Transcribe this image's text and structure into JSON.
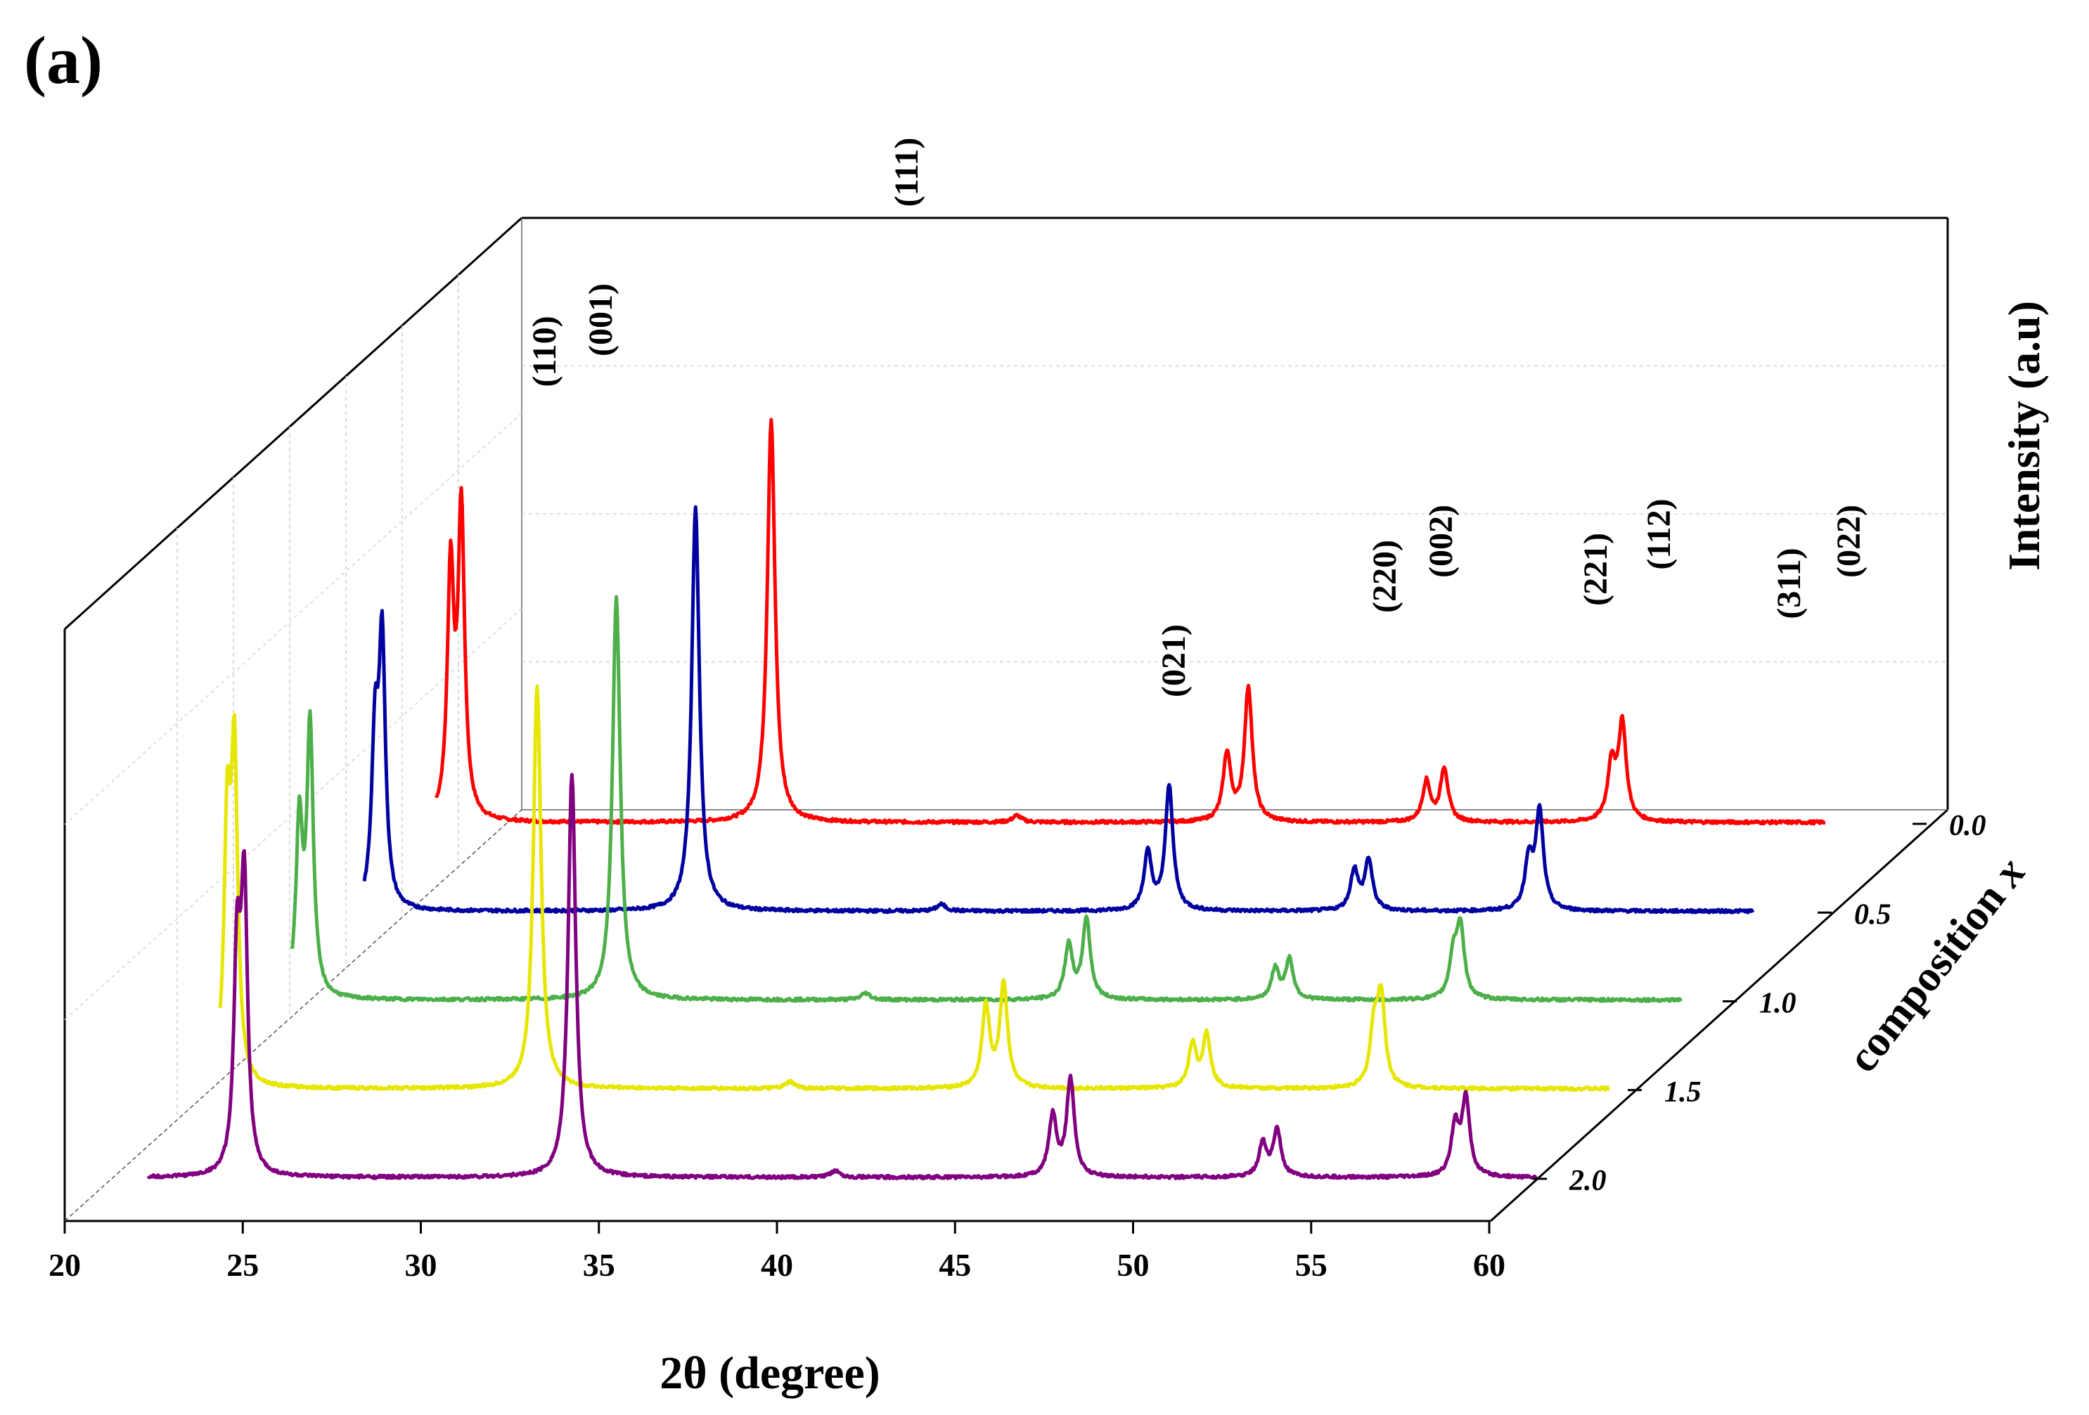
{
  "panel_label": "(a)",
  "chart_data": {
    "type": "line",
    "style": "3d-waterfall",
    "xlabel": "2θ (degree)",
    "ylabel": "Intensity (a.u)",
    "zlabel": "composition x",
    "xlim": [
      20,
      60
    ],
    "x_ticks": [
      "20",
      "25",
      "30",
      "35",
      "40",
      "45",
      "50",
      "55",
      "60"
    ],
    "x_tick_values": [
      20,
      25,
      30,
      35,
      40,
      45,
      50,
      55,
      60
    ],
    "z_ticks": [
      "0.0",
      "0.5",
      "1.0",
      "1.5",
      "2.0"
    ],
    "ylim": [
      0,
      100
    ],
    "grid": true,
    "series": [
      {
        "name": "0.0",
        "composition": 0.0,
        "color": "#ff0000",
        "peaks": [
          {
            "two_theta": 21.4,
            "intensity": 73,
            "width": 0.11
          },
          {
            "two_theta": 21.7,
            "intensity": 91,
            "width": 0.11
          },
          {
            "two_theta": 30.4,
            "intensity": 120,
            "width": 0.13
          },
          {
            "two_theta": 37.3,
            "intensity": 2,
            "width": 0.15
          },
          {
            "two_theta": 43.2,
            "intensity": 20,
            "width": 0.13
          },
          {
            "two_theta": 43.8,
            "intensity": 40,
            "width": 0.13
          },
          {
            "two_theta": 48.8,
            "intensity": 12,
            "width": 0.13
          },
          {
            "two_theta": 49.3,
            "intensity": 16,
            "width": 0.13
          },
          {
            "two_theta": 54.0,
            "intensity": 17,
            "width": 0.13
          },
          {
            "two_theta": 54.3,
            "intensity": 29,
            "width": 0.13
          }
        ]
      },
      {
        "name": "0.5",
        "composition": 0.5,
        "color": "#0000a0",
        "peaks": [
          {
            "two_theta": 21.3,
            "intensity": 48,
            "width": 0.11
          },
          {
            "two_theta": 21.5,
            "intensity": 78,
            "width": 0.11
          },
          {
            "two_theta": 30.3,
            "intensity": 120,
            "width": 0.13
          },
          {
            "two_theta": 37.2,
            "intensity": 2,
            "width": 0.15
          },
          {
            "two_theta": 43.0,
            "intensity": 17,
            "width": 0.13
          },
          {
            "two_theta": 43.6,
            "intensity": 37,
            "width": 0.13
          },
          {
            "two_theta": 48.8,
            "intensity": 12,
            "width": 0.13
          },
          {
            "two_theta": 49.2,
            "intensity": 15,
            "width": 0.13
          },
          {
            "two_theta": 53.7,
            "intensity": 15,
            "width": 0.13
          },
          {
            "two_theta": 54.0,
            "intensity": 29,
            "width": 0.13
          }
        ]
      },
      {
        "name": "1.0",
        "composition": 1.0,
        "color": "#4daf4a",
        "peaks": [
          {
            "two_theta": 21.2,
            "intensity": 51,
            "width": 0.11
          },
          {
            "two_theta": 21.5,
            "intensity": 80,
            "width": 0.11
          },
          {
            "two_theta": 30.1,
            "intensity": 120,
            "width": 0.13
          },
          {
            "two_theta": 37.1,
            "intensity": 2,
            "width": 0.15
          },
          {
            "two_theta": 42.8,
            "intensity": 16,
            "width": 0.13
          },
          {
            "two_theta": 43.3,
            "intensity": 24,
            "width": 0.13
          },
          {
            "two_theta": 48.6,
            "intensity": 9,
            "width": 0.13
          },
          {
            "two_theta": 49.0,
            "intensity": 12,
            "width": 0.13
          },
          {
            "two_theta": 53.6,
            "intensity": 12,
            "width": 0.13
          },
          {
            "two_theta": 53.8,
            "intensity": 21,
            "width": 0.13
          }
        ]
      },
      {
        "name": "1.5",
        "composition": 1.5,
        "color": "#e6e600",
        "peaks": [
          {
            "two_theta": 21.2,
            "intensity": 73,
            "width": 0.11
          },
          {
            "two_theta": 21.4,
            "intensity": 94,
            "width": 0.11
          },
          {
            "two_theta": 29.9,
            "intensity": 120,
            "width": 0.13
          },
          {
            "two_theta": 37.0,
            "intensity": 2,
            "width": 0.15
          },
          {
            "two_theta": 42.5,
            "intensity": 24,
            "width": 0.13
          },
          {
            "two_theta": 43.0,
            "intensity": 31,
            "width": 0.13
          },
          {
            "two_theta": 48.3,
            "intensity": 13,
            "width": 0.13
          },
          {
            "two_theta": 48.7,
            "intensity": 16,
            "width": 0.13
          },
          {
            "two_theta": 53.4,
            "intensity": 17,
            "width": 0.13
          },
          {
            "two_theta": 53.6,
            "intensity": 26,
            "width": 0.13
          }
        ]
      },
      {
        "name": "2.0",
        "composition": 2.0,
        "color": "#800080",
        "peaks": [
          {
            "two_theta": 23.5,
            "intensity": 63,
            "width": 0.11
          },
          {
            "two_theta": 23.7,
            "intensity": 83,
            "width": 0.11
          },
          {
            "two_theta": 32.9,
            "intensity": 120,
            "width": 0.13
          },
          {
            "two_theta": 40.3,
            "intensity": 2,
            "width": 0.15
          },
          {
            "two_theta": 46.4,
            "intensity": 18,
            "width": 0.13
          },
          {
            "two_theta": 46.9,
            "intensity": 29,
            "width": 0.13
          },
          {
            "two_theta": 52.3,
            "intensity": 10,
            "width": 0.13
          },
          {
            "two_theta": 52.7,
            "intensity": 14,
            "width": 0.13
          },
          {
            "two_theta": 57.7,
            "intensity": 15,
            "width": 0.13
          },
          {
            "two_theta": 58.0,
            "intensity": 23,
            "width": 0.13
          }
        ]
      }
    ],
    "annotations": [
      {
        "text": "(110)",
        "two_theta": 21.4
      },
      {
        "text": "(001)",
        "two_theta": 22.5
      },
      {
        "text": "(111)",
        "two_theta": 30.4
      },
      {
        "text": "(021)",
        "two_theta": 37.4
      },
      {
        "text": "(220)",
        "two_theta": 43.3
      },
      {
        "text": "(002)",
        "two_theta": 44.4
      },
      {
        "text": "(221)",
        "two_theta": 48.9
      },
      {
        "text": "(112)",
        "two_theta": 50.0
      },
      {
        "text": "(311)",
        "two_theta": 54.1
      },
      {
        "text": "(022)",
        "two_theta": 55.3
      }
    ]
  }
}
